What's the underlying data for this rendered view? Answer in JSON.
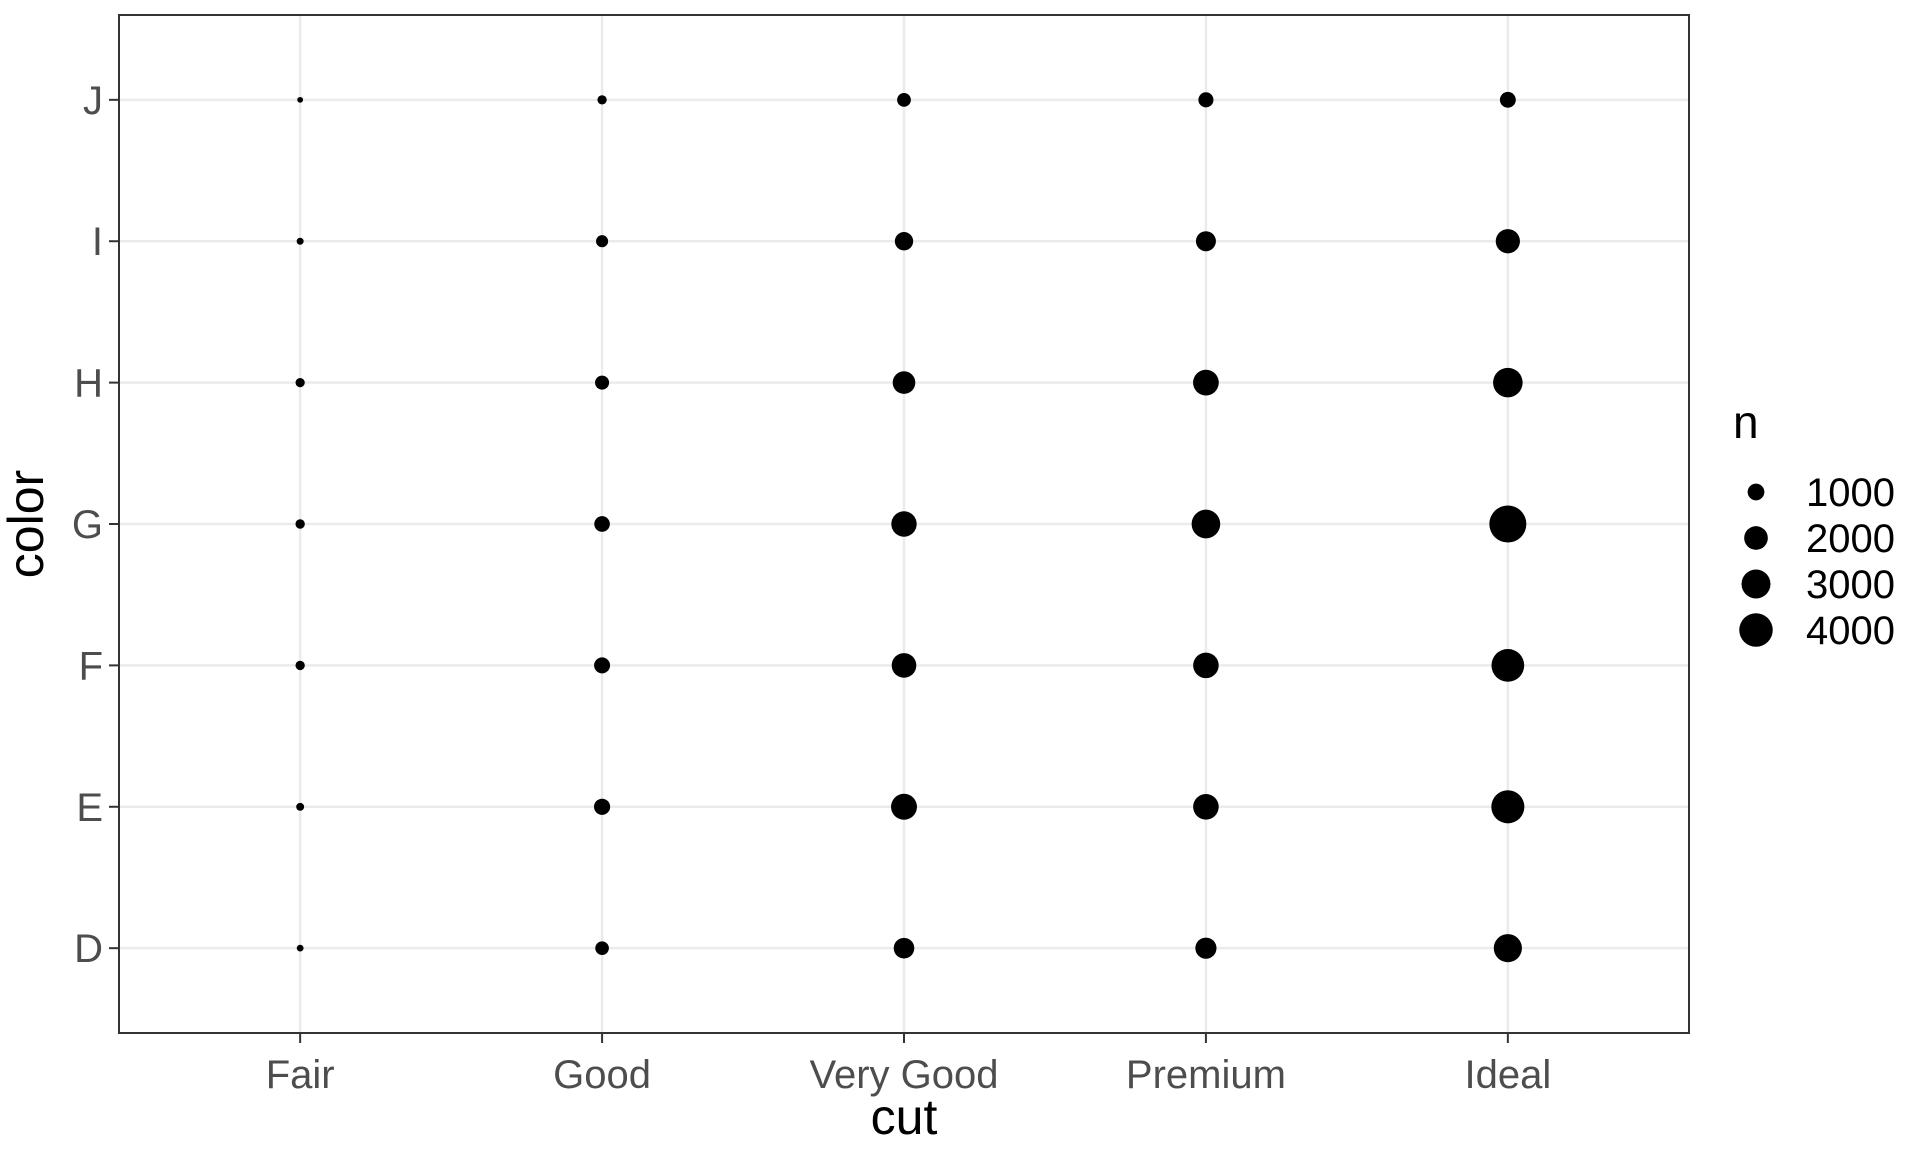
{
  "chart_data": {
    "type": "scatter",
    "title": "",
    "xlabel": "cut",
    "ylabel": "color",
    "x_categories": [
      "Fair",
      "Good",
      "Very Good",
      "Premium",
      "Ideal"
    ],
    "y_categories": [
      "D",
      "E",
      "F",
      "G",
      "H",
      "I",
      "J"
    ],
    "points": [
      {
        "x": "Fair",
        "y": "D",
        "n": 163
      },
      {
        "x": "Fair",
        "y": "E",
        "n": 224
      },
      {
        "x": "Fair",
        "y": "F",
        "n": 312
      },
      {
        "x": "Fair",
        "y": "G",
        "n": 314
      },
      {
        "x": "Fair",
        "y": "H",
        "n": 303
      },
      {
        "x": "Fair",
        "y": "I",
        "n": 175
      },
      {
        "x": "Fair",
        "y": "J",
        "n": 119
      },
      {
        "x": "Good",
        "y": "D",
        "n": 662
      },
      {
        "x": "Good",
        "y": "E",
        "n": 933
      },
      {
        "x": "Good",
        "y": "F",
        "n": 909
      },
      {
        "x": "Good",
        "y": "G",
        "n": 871
      },
      {
        "x": "Good",
        "y": "H",
        "n": 702
      },
      {
        "x": "Good",
        "y": "I",
        "n": 522
      },
      {
        "x": "Good",
        "y": "J",
        "n": 307
      },
      {
        "x": "Very Good",
        "y": "D",
        "n": 1513
      },
      {
        "x": "Very Good",
        "y": "E",
        "n": 2400
      },
      {
        "x": "Very Good",
        "y": "F",
        "n": 2164
      },
      {
        "x": "Very Good",
        "y": "G",
        "n": 2299
      },
      {
        "x": "Very Good",
        "y": "H",
        "n": 1824
      },
      {
        "x": "Very Good",
        "y": "I",
        "n": 1204
      },
      {
        "x": "Very Good",
        "y": "J",
        "n": 678
      },
      {
        "x": "Premium",
        "y": "D",
        "n": 1603
      },
      {
        "x": "Premium",
        "y": "E",
        "n": 2337
      },
      {
        "x": "Premium",
        "y": "F",
        "n": 2331
      },
      {
        "x": "Premium",
        "y": "G",
        "n": 2924
      },
      {
        "x": "Premium",
        "y": "H",
        "n": 2360
      },
      {
        "x": "Premium",
        "y": "I",
        "n": 1428
      },
      {
        "x": "Premium",
        "y": "J",
        "n": 808
      },
      {
        "x": "Ideal",
        "y": "D",
        "n": 2834
      },
      {
        "x": "Ideal",
        "y": "E",
        "n": 3903
      },
      {
        "x": "Ideal",
        "y": "F",
        "n": 3826
      },
      {
        "x": "Ideal",
        "y": "G",
        "n": 4884
      },
      {
        "x": "Ideal",
        "y": "H",
        "n": 3115
      },
      {
        "x": "Ideal",
        "y": "I",
        "n": 2093
      },
      {
        "x": "Ideal",
        "y": "J",
        "n": 896
      }
    ],
    "size_legend": {
      "title": "n",
      "entries": [
        {
          "label": "1000",
          "n": 1000
        },
        {
          "label": "2000",
          "n": 2000
        },
        {
          "label": "3000",
          "n": 3000
        },
        {
          "label": "4000",
          "n": 4000
        }
      ]
    },
    "grid": true,
    "legend_position": "right",
    "point_color": "#000000",
    "grid_color": "#ebebeb",
    "panel_border_color": "#333333"
  }
}
